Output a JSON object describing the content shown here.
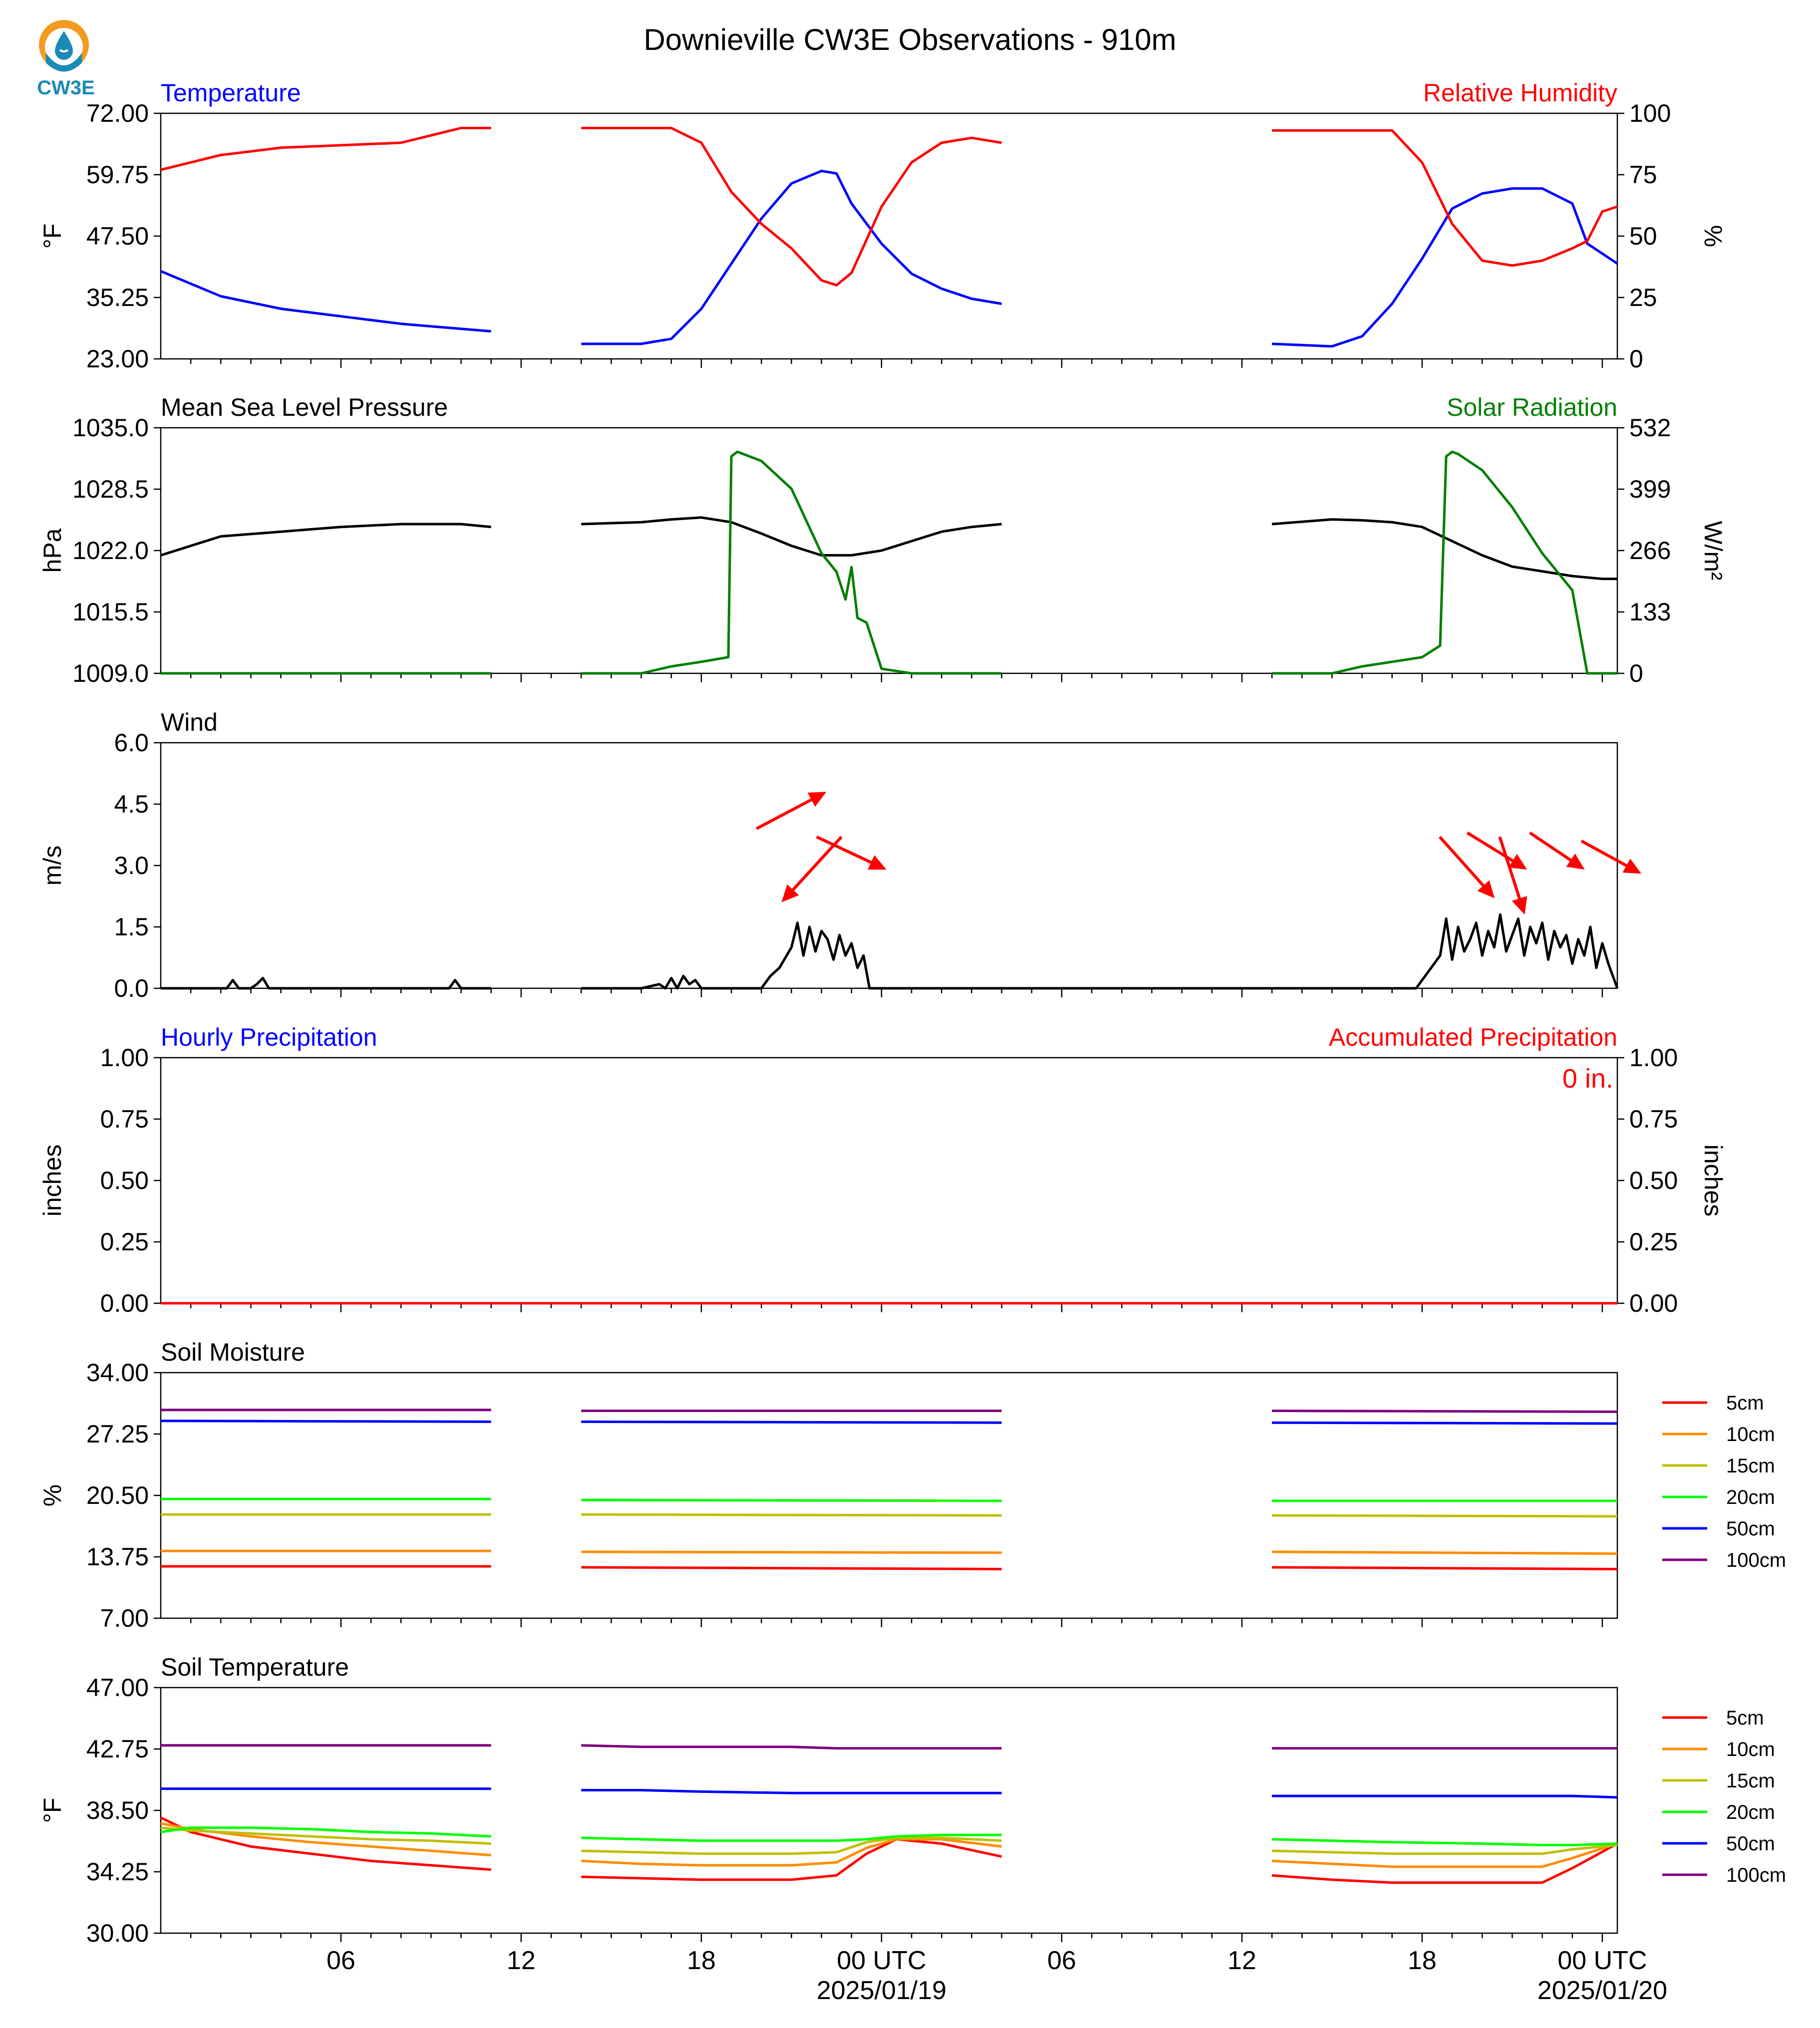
{
  "title": "Downieville CW3E Observations - 910m",
  "logo": {
    "text": "CW3E",
    "colors": {
      "sun": "#f39a21",
      "water": "#1b8ab5",
      "text": "#1b8ab5"
    }
  },
  "x_axis": {
    "tick_labels": [
      "06",
      "12",
      "18",
      "00 UTC",
      "06",
      "12",
      "18",
      "00 UTC"
    ],
    "date_labels": [
      "2025/01/19",
      "2025/01/20"
    ]
  },
  "chart_data": [
    {
      "type": "line",
      "left_title": "Temperature",
      "right_title": "Relative Humidity",
      "left_title_color": "#0000ff",
      "right_title_color": "#ff0000",
      "ylabel": "°F",
      "ylabel2": "%",
      "ylim": [
        23.0,
        72.0
      ],
      "yticks": [
        "72.00",
        "59.75",
        "47.50",
        "35.25",
        "23.00"
      ],
      "ylim2": [
        0,
        100
      ],
      "yticks2": [
        "100",
        "75",
        "50",
        "25",
        "0"
      ],
      "x_hours": [
        0,
        2,
        4,
        6,
        8,
        10,
        11,
        14,
        16,
        17,
        18,
        19,
        20,
        21,
        22,
        22.5,
        23,
        24,
        25,
        26,
        27,
        28,
        37,
        39,
        40,
        41,
        42,
        43,
        44,
        45,
        46,
        47,
        47.5,
        48,
        48.5
      ],
      "series": [
        {
          "color": "#0000ff",
          "axis": "left",
          "values": [
            40.5,
            35.5,
            33.0,
            31.5,
            30.0,
            29.0,
            28.5,
            26.0,
            26.0,
            27.0,
            33.0,
            42.0,
            51.0,
            58.0,
            60.5,
            60.0,
            54.0,
            46.0,
            40.0,
            37.0,
            35.0,
            34.0,
            26.0,
            25.5,
            27.5,
            34.0,
            43.0,
            53.0,
            56.0,
            57.0,
            57.0,
            54.0,
            46.0,
            44.0,
            42.0
          ]
        },
        {
          "color": "#ff0000",
          "axis": "right",
          "values": [
            77,
            83,
            86,
            87,
            88,
            94,
            94,
            94,
            94,
            94,
            88,
            68,
            55,
            45,
            32,
            30,
            35,
            62,
            80,
            88,
            90,
            88,
            93,
            93,
            93,
            93,
            80,
            55,
            40,
            38,
            40,
            45,
            48,
            60,
            62
          ]
        }
      ]
    },
    {
      "type": "line",
      "left_title": "Mean Sea Level Pressure",
      "right_title": "Solar Radiation",
      "left_title_color": "#000000",
      "right_title_color": "#007f00",
      "ylabel": "hPa",
      "ylabel2": "W/m²",
      "ylim": [
        1009.0,
        1035.0
      ],
      "yticks": [
        "1035.0",
        "1028.5",
        "1022.0",
        "1015.5",
        "1009.0"
      ],
      "ylim2": [
        0,
        532
      ],
      "yticks2": [
        "532",
        "399",
        "266",
        "133",
        "0"
      ],
      "series": [
        {
          "name": "Mean Sea Level Pressure",
          "color": "#000000",
          "axis": "left",
          "x_hours": [
            0,
            2,
            4,
            6,
            8,
            10,
            11,
            14,
            16,
            17,
            18,
            19,
            20,
            21,
            22,
            23,
            24,
            25,
            26,
            27,
            28,
            37,
            39,
            40,
            41,
            42,
            43,
            44,
            45,
            46,
            47,
            48,
            48.5
          ],
          "values": [
            1021.5,
            1023.5,
            1024.0,
            1024.5,
            1024.8,
            1024.8,
            1024.5,
            1024.8,
            1025.0,
            1025.3,
            1025.5,
            1025.0,
            1023.8,
            1022.5,
            1021.5,
            1021.5,
            1022.0,
            1023.0,
            1024.0,
            1024.5,
            1024.8,
            1024.8,
            1025.3,
            1025.2,
            1025.0,
            1024.5,
            1023.0,
            1021.5,
            1020.3,
            1019.8,
            1019.3,
            1019.0,
            1019.0
          ]
        },
        {
          "name": "Solar Radiation",
          "color": "#007f00",
          "axis": "right",
          "x_hours": [
            0,
            11,
            14,
            16,
            17,
            18,
            18.9,
            19.0,
            19.2,
            20.0,
            21.0,
            22.0,
            22.5,
            22.8,
            23.0,
            23.2,
            23.5,
            24.0,
            25.0,
            28.0,
            37.0,
            39.0,
            40.0,
            41.0,
            42.0,
            42.6,
            42.8,
            43.0,
            43.2,
            44.0,
            45.0,
            46.0,
            47.0,
            47.5,
            48.0,
            48.5
          ],
          "values": [
            0,
            0,
            0,
            0,
            15,
            25,
            35,
            470,
            480,
            460,
            400,
            260,
            220,
            160,
            230,
            120,
            110,
            10,
            0,
            0,
            0,
            0,
            15,
            25,
            35,
            60,
            470,
            480,
            475,
            440,
            360,
            260,
            180,
            0,
            0,
            0
          ]
        }
      ]
    },
    {
      "type": "line",
      "left_title": "Wind",
      "left_title_color": "#000000",
      "ylabel": "m/s",
      "ylim": [
        0.0,
        6.0
      ],
      "yticks": [
        "6.0",
        "4.5",
        "3.0",
        "1.5",
        "0.0"
      ],
      "series": [
        {
          "name": "Wind",
          "color": "#000000",
          "axis": "left",
          "x_hours": [
            0,
            2.2,
            2.4,
            2.6,
            3.0,
            3.2,
            3.4,
            3.6,
            4.0,
            9.6,
            9.8,
            10.0,
            11.0,
            14.0,
            16.0,
            16.6,
            16.8,
            17.0,
            17.2,
            17.4,
            17.6,
            17.8,
            18.0,
            20.0,
            20.3,
            20.6,
            21.0,
            21.2,
            21.4,
            21.6,
            21.8,
            22.0,
            22.2,
            22.4,
            22.6,
            22.8,
            23.0,
            23.2,
            23.4,
            23.6,
            24.0,
            28.0,
            41.0,
            41.8,
            42.2,
            42.6,
            42.8,
            43.0,
            43.2,
            43.4,
            43.6,
            43.8,
            44.0,
            44.2,
            44.4,
            44.6,
            44.8,
            45.0,
            45.2,
            45.4,
            45.6,
            45.8,
            46.0,
            46.2,
            46.4,
            46.6,
            46.8,
            47.0,
            47.2,
            47.4,
            47.6,
            47.8,
            48.0,
            48.2,
            48.5
          ],
          "values": [
            0,
            0,
            0.2,
            0,
            0,
            0.1,
            0.25,
            0,
            0,
            0,
            0.2,
            0,
            0,
            0,
            0,
            0.1,
            0,
            0.25,
            0,
            0.3,
            0.1,
            0.2,
            0,
            0,
            0.3,
            0.5,
            1.0,
            1.6,
            0.8,
            1.5,
            0.9,
            1.4,
            1.2,
            0.7,
            1.3,
            0.8,
            1.1,
            0.5,
            0.8,
            0,
            0,
            0,
            0,
            0,
            0.4,
            0.8,
            1.7,
            0.7,
            1.5,
            0.9,
            1.2,
            1.6,
            0.8,
            1.4,
            1.0,
            1.8,
            0.9,
            1.3,
            1.7,
            0.8,
            1.5,
            1.1,
            1.6,
            0.7,
            1.4,
            1.0,
            1.3,
            0.6,
            1.2,
            0.8,
            1.5,
            0.5,
            1.1,
            0.6,
            0
          ]
        }
      ],
      "wind_arrows": {
        "color": "#ff0000",
        "items": [
          {
            "hour": 21.0,
            "from_v": 3.9,
            "to_v": 4.8
          },
          {
            "hour": 22.0,
            "from_v": 3.7,
            "to_v": 2.1
          },
          {
            "hour": 23.0,
            "from_v": 3.7,
            "to_v": 2.9
          },
          {
            "hour": 43.5,
            "from_v": 3.7,
            "to_v": 2.2
          },
          {
            "hour": 44.5,
            "from_v": 3.8,
            "to_v": 2.9
          },
          {
            "hour": 45.0,
            "from_v": 3.7,
            "to_v": 1.8
          },
          {
            "hour": 46.5,
            "from_v": 3.8,
            "to_v": 2.9
          },
          {
            "hour": 48.3,
            "from_v": 3.6,
            "to_v": 2.8
          }
        ]
      }
    },
    {
      "type": "line",
      "left_title": "Hourly Precipitation",
      "right_title": "Accumulated Precipitation",
      "left_title_color": "#0000ff",
      "right_title_color": "#ff0000",
      "ylabel": "inches",
      "ylabel2": "inches",
      "ylim": [
        0.0,
        1.0
      ],
      "yticks": [
        "1.00",
        "0.75",
        "0.50",
        "0.25",
        "0.00"
      ],
      "ylim2": [
        0.0,
        1.0
      ],
      "yticks2": [
        "1.00",
        "0.75",
        "0.50",
        "0.25",
        "0.00"
      ],
      "annotation": "0 in.",
      "series": [
        {
          "name": "Hourly Precipitation",
          "color": "#0000ff",
          "axis": "left",
          "x_hours": [
            0,
            48.5
          ],
          "values": [
            0,
            0
          ]
        },
        {
          "name": "Accumulated Precipitation",
          "color": "#ff0000",
          "axis": "right",
          "x_hours": [
            0,
            48.5
          ],
          "values": [
            0,
            0
          ]
        }
      ]
    },
    {
      "type": "line",
      "left_title": "Soil Moisture",
      "left_title_color": "#000000",
      "ylabel": "%",
      "ylim": [
        7.0,
        34.0
      ],
      "yticks": [
        "34.00",
        "27.25",
        "20.50",
        "13.75",
        "7.00"
      ],
      "legend": [
        {
          "label": "5cm",
          "color": "#ff0000"
        },
        {
          "label": "10cm",
          "color": "#ff8c00"
        },
        {
          "label": "15cm",
          "color": "#bfbf00"
        },
        {
          "label": "20cm",
          "color": "#00ff00"
        },
        {
          "label": "50cm",
          "color": "#0000ff"
        },
        {
          "label": "100cm",
          "color": "#7f007f"
        }
      ],
      "x_hours": [
        0,
        11,
        14,
        28,
        37,
        48.5
      ],
      "series": [
        {
          "color": "#ff0000",
          "axis": "left",
          "values": [
            12.7,
            12.7,
            12.6,
            12.4,
            12.6,
            12.4
          ]
        },
        {
          "color": "#ff8c00",
          "axis": "left",
          "values": [
            14.4,
            14.4,
            14.3,
            14.2,
            14.3,
            14.1
          ]
        },
        {
          "color": "#bfbf00",
          "axis": "left",
          "values": [
            18.4,
            18.4,
            18.4,
            18.3,
            18.3,
            18.2
          ]
        },
        {
          "color": "#00ff00",
          "axis": "left",
          "values": [
            20.1,
            20.1,
            20.0,
            19.9,
            19.9,
            19.9
          ]
        },
        {
          "color": "#0000ff",
          "axis": "left",
          "values": [
            28.7,
            28.6,
            28.6,
            28.5,
            28.5,
            28.4
          ]
        },
        {
          "color": "#7f007f",
          "axis": "left",
          "values": [
            29.9,
            29.9,
            29.8,
            29.8,
            29.8,
            29.7
          ]
        }
      ]
    },
    {
      "type": "line",
      "left_title": "Soil Temperature",
      "left_title_color": "#000000",
      "ylabel": "°F",
      "ylim": [
        30.0,
        47.0
      ],
      "yticks": [
        "47.00",
        "42.75",
        "38.50",
        "34.25",
        "30.00"
      ],
      "legend": [
        {
          "label": "5cm",
          "color": "#ff0000"
        },
        {
          "label": "10cm",
          "color": "#ff8c00"
        },
        {
          "label": "15cm",
          "color": "#bfbf00"
        },
        {
          "label": "20cm",
          "color": "#00ff00"
        },
        {
          "label": "50cm",
          "color": "#0000ff"
        },
        {
          "label": "100cm",
          "color": "#7f007f"
        }
      ],
      "x_hours": [
        0,
        1,
        3,
        5,
        7,
        9,
        11,
        14,
        16,
        18,
        21,
        22.5,
        23.5,
        24.5,
        26,
        28,
        37,
        39,
        41,
        44,
        46,
        47,
        48.5
      ],
      "series": [
        {
          "color": "#ff0000",
          "axis": "left",
          "values": [
            38.0,
            37.0,
            36.0,
            35.5,
            35.0,
            34.7,
            34.4,
            33.9,
            33.8,
            33.7,
            33.7,
            34.0,
            35.5,
            36.5,
            36.2,
            35.3,
            34.0,
            33.7,
            33.5,
            33.5,
            33.5,
            34.5,
            36.2
          ]
        },
        {
          "color": "#ff8c00",
          "axis": "left",
          "values": [
            37.6,
            37.2,
            36.7,
            36.3,
            36.0,
            35.7,
            35.4,
            35.0,
            34.8,
            34.7,
            34.7,
            34.9,
            35.9,
            36.5,
            36.5,
            36.0,
            35.0,
            34.8,
            34.6,
            34.6,
            34.6,
            35.2,
            36.2
          ]
        },
        {
          "color": "#bfbf00",
          "axis": "left",
          "values": [
            37.3,
            37.1,
            36.9,
            36.7,
            36.5,
            36.4,
            36.2,
            35.7,
            35.6,
            35.5,
            35.5,
            35.6,
            36.3,
            36.6,
            36.6,
            36.4,
            35.7,
            35.6,
            35.5,
            35.5,
            35.5,
            35.8,
            36.1
          ]
        },
        {
          "color": "#00ff00",
          "axis": "left",
          "values": [
            37.0,
            37.3,
            37.3,
            37.2,
            37.0,
            36.9,
            36.7,
            36.6,
            36.5,
            36.4,
            36.4,
            36.4,
            36.5,
            36.7,
            36.8,
            36.8,
            36.5,
            36.4,
            36.3,
            36.2,
            36.1,
            36.1,
            36.2
          ]
        },
        {
          "color": "#0000ff",
          "axis": "left",
          "values": [
            40.0,
            40.0,
            40.0,
            40.0,
            40.0,
            40.0,
            40.0,
            39.9,
            39.9,
            39.8,
            39.7,
            39.7,
            39.7,
            39.7,
            39.7,
            39.7,
            39.5,
            39.5,
            39.5,
            39.5,
            39.5,
            39.5,
            39.4
          ]
        },
        {
          "color": "#7f007f",
          "axis": "left",
          "values": [
            43.0,
            43.0,
            43.0,
            43.0,
            43.0,
            43.0,
            43.0,
            43.0,
            42.9,
            42.9,
            42.9,
            42.8,
            42.8,
            42.8,
            42.8,
            42.8,
            42.8,
            42.8,
            42.8,
            42.8,
            42.8,
            42.8,
            42.8
          ]
        }
      ]
    }
  ]
}
